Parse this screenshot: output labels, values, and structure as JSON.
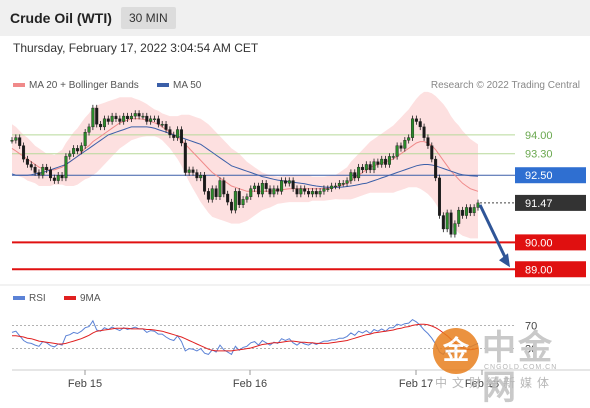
{
  "header": {
    "title": "Crude Oil (WTI)",
    "timeframe": "30 MIN"
  },
  "timestamp": "Thursday, February 17, 2022 3:04:54 AM CET",
  "legend_top": [
    {
      "label": "MA 20 + Bollinger Bands",
      "color": "#f08a8a"
    },
    {
      "label": "MA 50",
      "color": "#3b5fa8"
    }
  ],
  "legend_bottom": [
    {
      "label": "RSI",
      "color": "#5b82d6"
    },
    {
      "label": "9MA",
      "color": "#e02020"
    }
  ],
  "credit": "Research © 2022 Trading Central",
  "watermark": {
    "circle": "金",
    "main": "中金网",
    "url": "CNGOLD.COM.CN",
    "sub": "中文财经新媒体"
  },
  "chart_data": [
    {
      "type": "line",
      "name": "price",
      "ylim": [
        88.6,
        95.3
      ],
      "x_ticks": [
        "Feb 15",
        "Feb 16",
        "Feb 17",
        "Feb 18"
      ],
      "levels": [
        {
          "value": 94.0,
          "label": "94.00",
          "kind": "resistance"
        },
        {
          "value": 93.3,
          "label": "93.30",
          "kind": "resistance"
        },
        {
          "value": 92.5,
          "label": "92.50",
          "kind": "pivot"
        },
        {
          "value": 91.47,
          "label": "91.47",
          "kind": "last"
        },
        {
          "value": 90.0,
          "label": "90.00",
          "kind": "support"
        },
        {
          "value": 89.0,
          "label": "89.00",
          "kind": "support"
        }
      ],
      "close": [
        93.8,
        93.9,
        93.6,
        93.1,
        92.9,
        92.8,
        92.6,
        92.5,
        92.8,
        92.7,
        92.4,
        92.3,
        92.5,
        92.4,
        93.2,
        93.3,
        93.5,
        93.4,
        93.6,
        94.1,
        94.3,
        95.0,
        94.4,
        94.3,
        94.6,
        94.5,
        94.7,
        94.6,
        94.5,
        94.7,
        94.6,
        94.7,
        94.8,
        94.7,
        94.7,
        94.5,
        94.6,
        94.6,
        94.4,
        94.4,
        94.2,
        94.0,
        93.9,
        94.2,
        93.7,
        92.6,
        92.7,
        92.6,
        92.4,
        92.5,
        91.9,
        91.6,
        92.0,
        91.7,
        92.3,
        91.8,
        91.5,
        91.2,
        91.9,
        91.4,
        91.6,
        91.7,
        92.0,
        92.1,
        91.8,
        92.2,
        92.0,
        91.8,
        92.0,
        91.9,
        92.3,
        92.2,
        92.3,
        92.0,
        91.8,
        92.0,
        91.9,
        91.8,
        91.9,
        91.8,
        91.9,
        92.0,
        92.0,
        92.1,
        92.1,
        92.2,
        92.2,
        92.3,
        92.6,
        92.4,
        92.8,
        92.7,
        92.9,
        92.7,
        93.0,
        92.9,
        93.1,
        92.9,
        93.2,
        93.2,
        93.6,
        93.5,
        93.8,
        93.9,
        94.6,
        94.5,
        94.3,
        93.9,
        93.6,
        93.1,
        92.4,
        91.0,
        90.5,
        91.1,
        90.3,
        90.7,
        91.2,
        91.0,
        91.3,
        91.1,
        91.3,
        91.47
      ],
      "ma20": [
        93.5,
        93.4,
        93.3,
        93.2,
        93.1,
        93.0,
        92.9,
        92.8,
        92.75,
        92.7,
        92.7,
        92.7,
        92.75,
        92.8,
        92.9,
        93.0,
        93.1,
        93.2,
        93.35,
        93.5,
        93.6,
        93.75,
        93.85,
        93.95,
        94.05,
        94.15,
        94.25,
        94.35,
        94.45,
        94.5,
        94.55,
        94.6,
        94.6,
        94.6,
        94.58,
        94.55,
        94.5,
        94.45,
        94.4,
        94.3,
        94.2,
        94.1,
        94.0,
        93.9,
        93.8,
        93.65,
        93.5,
        93.35,
        93.2,
        93.05,
        92.9,
        92.75,
        92.6,
        92.5,
        92.4,
        92.3,
        92.2,
        92.1,
        92.05,
        92.0,
        91.95,
        91.9,
        91.9,
        91.9,
        91.9,
        91.9,
        91.9,
        91.9,
        91.92,
        91.94,
        91.96,
        91.98,
        92.0,
        92.0,
        92.0,
        92.0,
        92.0,
        92.0,
        92.0,
        92.0,
        92.0,
        92.0,
        92.02,
        92.04,
        92.06,
        92.1,
        92.15,
        92.2,
        92.3,
        92.4,
        92.5,
        92.6,
        92.7,
        92.8,
        92.85,
        92.9,
        92.95,
        93.0,
        93.05,
        93.1,
        93.2,
        93.3,
        93.4,
        93.5,
        93.6,
        93.7,
        93.75,
        93.75,
        93.7,
        93.6,
        93.45,
        93.25,
        93.05,
        92.85,
        92.65,
        92.5,
        92.35,
        92.2,
        92.1,
        92.0,
        91.95,
        91.9
      ],
      "ma50": [
        92.55,
        92.5,
        92.5,
        92.5,
        92.5,
        92.52,
        92.55,
        92.58,
        92.6,
        92.65,
        92.7,
        92.75,
        92.8,
        92.85,
        92.9,
        93.0,
        93.1,
        93.2,
        93.3,
        93.4,
        93.5,
        93.6,
        93.7,
        93.8,
        93.9,
        94.0,
        94.05,
        94.1,
        94.15,
        94.2,
        94.25,
        94.3,
        94.3,
        94.3,
        94.3,
        94.3,
        94.28,
        94.25,
        94.2,
        94.15,
        94.1,
        94.05,
        94.0,
        93.95,
        93.9,
        93.85,
        93.8,
        93.75,
        93.7,
        93.65,
        93.55,
        93.45,
        93.35,
        93.25,
        93.15,
        93.05,
        92.95,
        92.85,
        92.8,
        92.75,
        92.7,
        92.65,
        92.6,
        92.55,
        92.5,
        92.45,
        92.42,
        92.38,
        92.35,
        92.32,
        92.3,
        92.28,
        92.26,
        92.24,
        92.22,
        92.2,
        92.18,
        92.15,
        92.12,
        92.1,
        92.08,
        92.06,
        92.05,
        92.05,
        92.05,
        92.05,
        92.06,
        92.08,
        92.1,
        92.12,
        92.15,
        92.18,
        92.2,
        92.25,
        92.3,
        92.35,
        92.4,
        92.45,
        92.5,
        92.55,
        92.6,
        92.65,
        92.7,
        92.75,
        92.8,
        92.85,
        92.88,
        92.9,
        92.9,
        92.88,
        92.85,
        92.8,
        92.75,
        92.7,
        92.65,
        92.6,
        92.55,
        92.52,
        92.5,
        92.48,
        92.47,
        92.46
      ],
      "bb_width": [
        0.9,
        0.9,
        0.85,
        0.8,
        0.8,
        0.75,
        0.7,
        0.7,
        0.65,
        0.6,
        0.6,
        0.55,
        0.6,
        0.65,
        0.8,
        0.9,
        1.0,
        1.05,
        1.1,
        1.15,
        1.2,
        1.25,
        1.25,
        1.2,
        1.15,
        1.1,
        1.05,
        1.0,
        0.95,
        0.9,
        0.85,
        0.8,
        0.75,
        0.7,
        0.65,
        0.6,
        0.55,
        0.5,
        0.5,
        0.5,
        0.55,
        0.6,
        0.7,
        0.8,
        0.95,
        1.1,
        1.25,
        1.35,
        1.45,
        1.55,
        1.6,
        1.65,
        1.65,
        1.6,
        1.55,
        1.5,
        1.45,
        1.4,
        1.35,
        1.3,
        1.2,
        1.1,
        1.0,
        0.9,
        0.8,
        0.7,
        0.65,
        0.6,
        0.55,
        0.5,
        0.5,
        0.5,
        0.5,
        0.5,
        0.5,
        0.5,
        0.5,
        0.5,
        0.45,
        0.45,
        0.45,
        0.45,
        0.45,
        0.45,
        0.45,
        0.5,
        0.55,
        0.6,
        0.7,
        0.75,
        0.8,
        0.85,
        0.9,
        0.95,
        1.0,
        1.05,
        1.1,
        1.15,
        1.2,
        1.25,
        1.3,
        1.35,
        1.4,
        1.45,
        1.55,
        1.65,
        1.75,
        1.85,
        1.9,
        1.95,
        2.0,
        2.05,
        2.1,
        2.1,
        2.05,
        2.0,
        2.0,
        1.95,
        1.9,
        1.85,
        1.8,
        1.75
      ]
    },
    {
      "type": "line",
      "name": "RSI",
      "ylim": [
        0,
        100
      ],
      "levels": [
        {
          "value": 70,
          "label": "70"
        },
        {
          "value": 30,
          "label": "30"
        }
      ],
      "rsi": [
        58,
        60,
        52,
        44,
        40,
        39,
        36,
        34,
        42,
        40,
        35,
        33,
        38,
        36,
        52,
        54,
        58,
        56,
        60,
        66,
        68,
        78,
        62,
        60,
        66,
        63,
        67,
        64,
        61,
        66,
        63,
        65,
        67,
        64,
        64,
        58,
        61,
        60,
        55,
        55,
        50,
        46,
        44,
        52,
        42,
        26,
        30,
        29,
        26,
        30,
        22,
        20,
        28,
        24,
        36,
        28,
        24,
        20,
        34,
        27,
        32,
        34,
        40,
        42,
        36,
        44,
        40,
        36,
        41,
        39,
        47,
        44,
        47,
        40,
        36,
        41,
        38,
        36,
        40,
        37,
        40,
        43,
        43,
        45,
        45,
        48,
        48,
        51,
        57,
        53,
        60,
        57,
        61,
        56,
        63,
        60,
        64,
        60,
        66,
        66,
        72,
        70,
        73,
        74,
        80,
        76,
        70,
        62,
        56,
        48,
        38,
        24,
        20,
        30,
        20,
        26,
        34,
        31,
        36,
        33,
        36,
        39
      ],
      "ma9": [
        52,
        52,
        51,
        50,
        48,
        47,
        45,
        43,
        42,
        41,
        40,
        39,
        38,
        38,
        39,
        41,
        43,
        45,
        47,
        50,
        53,
        57,
        60,
        61,
        62,
        63,
        64,
        65,
        65,
        65,
        65,
        64,
        64,
        64,
        64,
        63,
        63,
        62,
        61,
        60,
        58,
        56,
        54,
        52,
        50,
        47,
        44,
        41,
        38,
        35,
        32,
        29,
        27,
        26,
        26,
        26,
        26,
        26,
        27,
        28,
        29,
        30,
        31,
        33,
        35,
        37,
        38,
        39,
        40,
        40,
        41,
        42,
        43,
        43,
        42,
        41,
        41,
        40,
        40,
        39,
        39,
        39,
        39,
        40,
        41,
        42,
        43,
        44,
        46,
        48,
        50,
        52,
        54,
        55,
        57,
        58,
        59,
        60,
        61,
        62,
        64,
        65,
        67,
        68,
        70,
        71,
        72,
        72,
        71,
        69,
        66,
        62,
        57,
        52,
        46,
        40,
        35,
        31,
        29,
        28,
        29,
        31
      ]
    }
  ]
}
